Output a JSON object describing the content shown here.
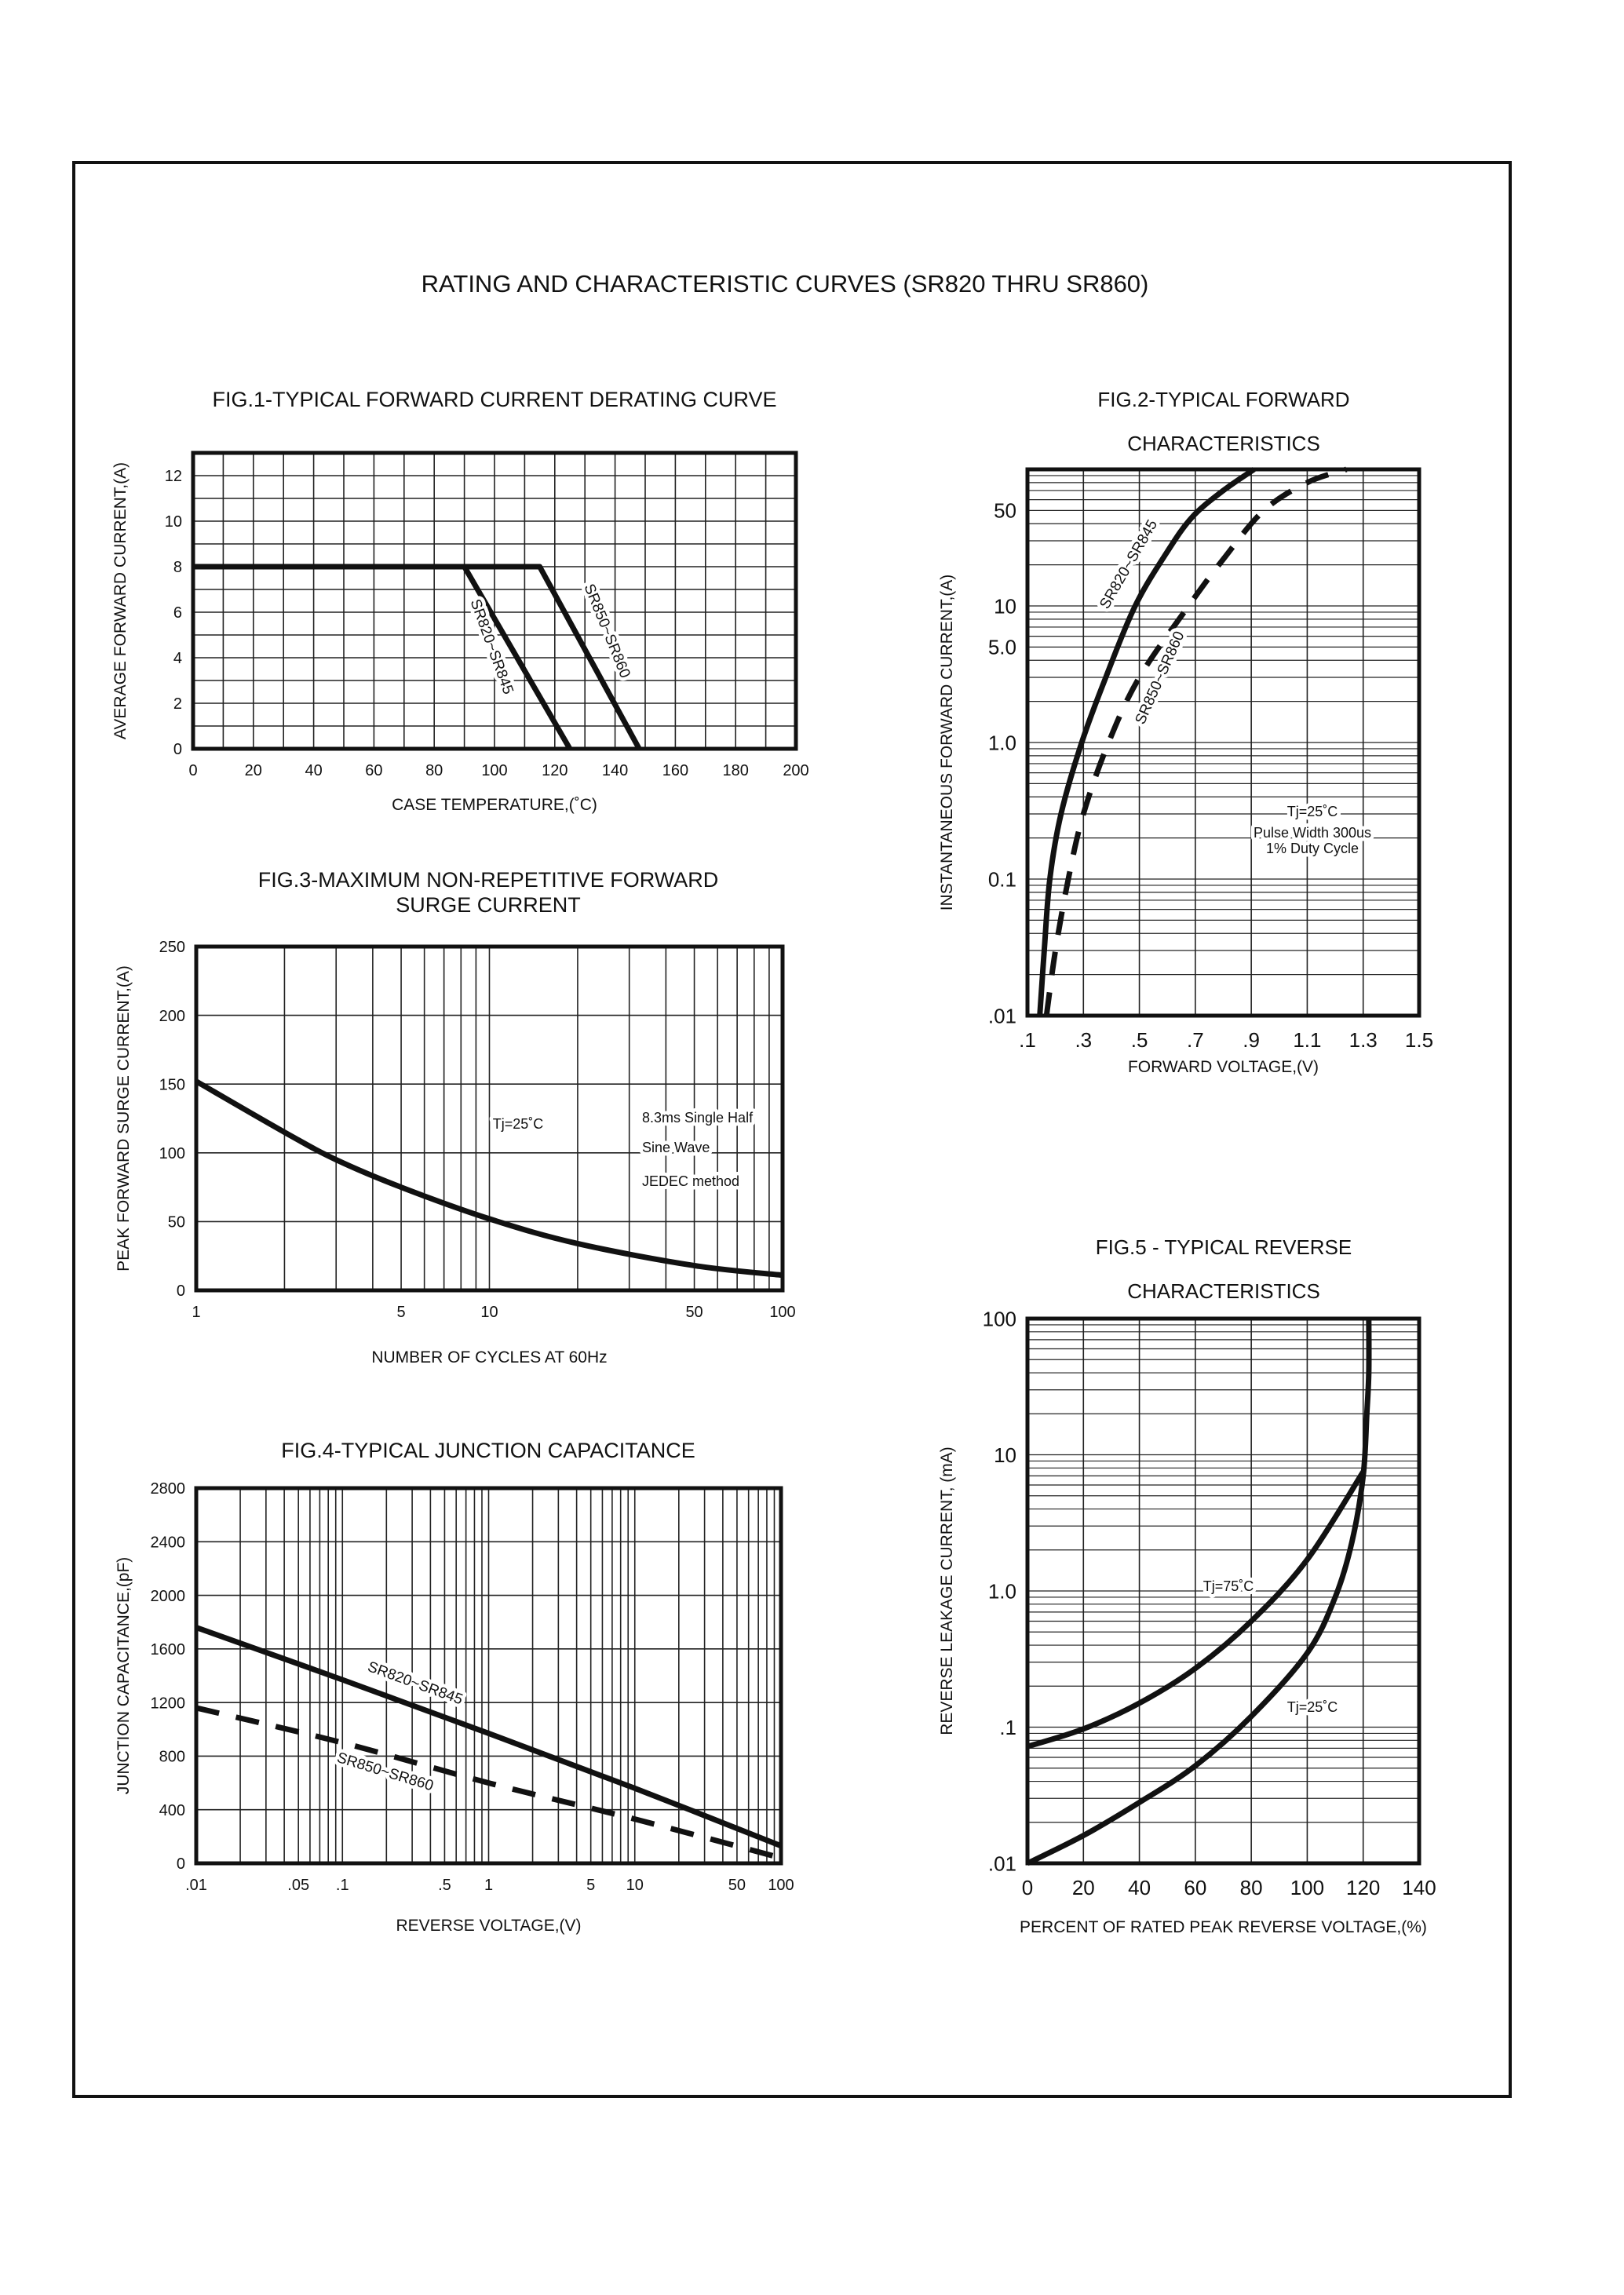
{
  "page_title": "RATING AND CHARACTERISTIC CURVES (SR820 THRU SR860)",
  "colors": {
    "ink": "#111111",
    "grid": "#222222",
    "paper": "#ffffff"
  },
  "chart_data": [
    {
      "id": "fig1",
      "type": "line",
      "title": [
        "FIG.1-TYPICAL FORWARD CURRENT DERATING CURVE"
      ],
      "xlabel": "CASE  TEMPERATURE,(˚C)",
      "ylabel": "AVERAGE FORWARD CURRENT,(A)",
      "xscale": "linear",
      "yscale": "linear",
      "xlim": [
        0,
        200
      ],
      "ylim": [
        0,
        13
      ],
      "grid": true,
      "xgrid_step": 10,
      "ygrid_step": 1,
      "xticks": [
        {
          "v": 0,
          "l": "0"
        },
        {
          "v": 20,
          "l": "20"
        },
        {
          "v": 40,
          "l": "40"
        },
        {
          "v": 60,
          "l": "60"
        },
        {
          "v": 80,
          "l": "80"
        },
        {
          "v": 100,
          "l": "100"
        },
        {
          "v": 120,
          "l": "120"
        },
        {
          "v": 140,
          "l": "140"
        },
        {
          "v": 160,
          "l": "160"
        },
        {
          "v": 180,
          "l": "180"
        },
        {
          "v": 200,
          "l": "200"
        }
      ],
      "yticks": [
        {
          "v": 0,
          "l": "0"
        },
        {
          "v": 2,
          "l": "2"
        },
        {
          "v": 4,
          "l": "4"
        },
        {
          "v": 6,
          "l": "6"
        },
        {
          "v": 8,
          "l": "8"
        },
        {
          "v": 10,
          "l": "10"
        },
        {
          "v": 12,
          "l": "12"
        }
      ],
      "series": [
        {
          "name": "SR820~SR845",
          "style": "solid",
          "smooth": false,
          "x": [
            0,
            90,
            125
          ],
          "y": [
            8,
            8,
            0
          ]
        },
        {
          "name": "SR850~SR860",
          "style": "solid",
          "smooth": false,
          "x": [
            0,
            115,
            148
          ],
          "y": [
            8,
            8,
            0
          ]
        }
      ],
      "annotations": []
    },
    {
      "id": "fig2",
      "type": "line",
      "title": [
        "FIG.2-TYPICAL FORWARD",
        "CHARACTERISTICS"
      ],
      "xlabel": "FORWARD VOLTAGE,(V)",
      "ylabel": "INSTANTANEOUS FORWARD CURRENT,(A)",
      "xscale": "linear",
      "yscale": "log",
      "xlim": [
        0.1,
        1.5
      ],
      "ylim": [
        0.01,
        100
      ],
      "grid": true,
      "xgrid_step": 0.2,
      "xticks": [
        {
          "v": 0.1,
          "l": ".1"
        },
        {
          "v": 0.3,
          "l": ".3"
        },
        {
          "v": 0.5,
          "l": ".5"
        },
        {
          "v": 0.7,
          "l": ".7"
        },
        {
          "v": 0.9,
          "l": ".9"
        },
        {
          "v": 1.1,
          "l": "1.1"
        },
        {
          "v": 1.3,
          "l": "1.3"
        },
        {
          "v": 1.5,
          "l": "1.5"
        }
      ],
      "yticks": [
        {
          "v": 0.01,
          "l": ".01"
        },
        {
          "v": 0.1,
          "l": "0.1"
        },
        {
          "v": 1,
          "l": "1.0"
        },
        {
          "v": 5,
          "l": "5.0"
        },
        {
          "v": 10,
          "l": "10"
        },
        {
          "v": 50,
          "l": "50"
        }
      ],
      "series": [
        {
          "name": "SR820~SR845",
          "style": "solid",
          "smooth": true,
          "x": [
            0.144,
            0.16,
            0.18,
            0.22,
            0.294,
            0.38,
            0.485,
            0.6,
            0.69,
            0.8,
            0.91
          ],
          "y": [
            0.01,
            0.03,
            0.1,
            0.3,
            1.0,
            3.0,
            10,
            25,
            45,
            70,
            100
          ]
        },
        {
          "name": "SR850~SR860",
          "style": "dashed",
          "smooth": true,
          "x": [
            0.168,
            0.2,
            0.246,
            0.3,
            0.39,
            0.5,
            0.676,
            0.8,
            0.945,
            1.1,
            1.24
          ],
          "y": [
            0.01,
            0.03,
            0.1,
            0.3,
            1.0,
            3.0,
            10,
            22,
            50,
            80,
            100
          ]
        }
      ],
      "annotations": [
        "Tj=25˚C",
        "Pulse Width 300us",
        "1% Duty Cycle"
      ]
    },
    {
      "id": "fig3",
      "type": "line",
      "title": [
        "FIG.3-MAXIMUM NON-REPETITIVE FORWARD",
        "SURGE CURRENT"
      ],
      "xlabel": "NUMBER OF CYCLES AT 60Hz",
      "ylabel": "PEAK FORWARD SURGE CURRENT,(A)",
      "xscale": "log",
      "yscale": "linear",
      "xlim": [
        1,
        100
      ],
      "ylim": [
        0,
        250
      ],
      "grid": true,
      "ygrid_step": 50,
      "xticks": [
        {
          "v": 1,
          "l": "1"
        },
        {
          "v": 5,
          "l": "5"
        },
        {
          "v": 10,
          "l": "10"
        },
        {
          "v": 50,
          "l": "50"
        },
        {
          "v": 100,
          "l": "100"
        }
      ],
      "yticks": [
        {
          "v": 0,
          "l": "0"
        },
        {
          "v": 50,
          "l": "50"
        },
        {
          "v": 100,
          "l": "100"
        },
        {
          "v": 150,
          "l": "150"
        },
        {
          "v": 200,
          "l": "200"
        },
        {
          "v": 250,
          "l": "250"
        }
      ],
      "series": [
        {
          "style": "solid",
          "smooth": true,
          "x": [
            1,
            2,
            3,
            5,
            10,
            20,
            50,
            100
          ],
          "y": [
            152,
            115,
            95,
            75,
            52,
            34,
            18,
            11
          ]
        }
      ],
      "annotations": [
        "Tj=25˚C",
        "8.3ms Single Half",
        "Sine Wave",
        "JEDEC method"
      ]
    },
    {
      "id": "fig4",
      "type": "line",
      "title": [
        "FIG.4-TYPICAL JUNCTION CAPACITANCE"
      ],
      "xlabel": "REVERSE VOLTAGE,(V)",
      "ylabel": "JUNCTION CAPACITANCE,(pF)",
      "xscale": "log",
      "yscale": "linear",
      "xlim": [
        0.01,
        100
      ],
      "ylim": [
        0,
        2800
      ],
      "grid": true,
      "ygrid_step": 400,
      "xticks": [
        {
          "v": 0.01,
          "l": ".01"
        },
        {
          "v": 0.05,
          "l": ".05"
        },
        {
          "v": 0.1,
          "l": ".1"
        },
        {
          "v": 0.5,
          "l": ".5"
        },
        {
          "v": 1,
          "l": "1"
        },
        {
          "v": 5,
          "l": "5"
        },
        {
          "v": 10,
          "l": "10"
        },
        {
          "v": 50,
          "l": "50"
        },
        {
          "v": 100,
          "l": "100"
        }
      ],
      "yticks": [
        {
          "v": 0,
          "l": "0"
        },
        {
          "v": 400,
          "l": "400"
        },
        {
          "v": 800,
          "l": "800"
        },
        {
          "v": 1200,
          "l": "1200"
        },
        {
          "v": 1600,
          "l": "1600"
        },
        {
          "v": 2000,
          "l": "2000"
        },
        {
          "v": 2400,
          "l": "2400"
        },
        {
          "v": 2800,
          "l": "2800"
        }
      ],
      "series": [
        {
          "name": "SR820~SR845",
          "style": "solid",
          "smooth": true,
          "x": [
            0.01,
            0.1,
            1,
            10,
            100
          ],
          "y": [
            1760,
            1370,
            970,
            560,
            130
          ]
        },
        {
          "name": "SR850~SR860",
          "style": "dashed",
          "smooth": true,
          "x": [
            0.01,
            0.1,
            1,
            10,
            100
          ],
          "y": [
            1160,
            900,
            600,
            330,
            40
          ]
        }
      ],
      "annotations": []
    },
    {
      "id": "fig5",
      "type": "line",
      "title": [
        "FIG.5 - TYPICAL REVERSE",
        "CHARACTERISTICS"
      ],
      "xlabel": "PERCENT OF RATED PEAK REVERSE VOLTAGE,(%)",
      "ylabel": "REVERSE LEAKAGE CURRENT, (mA)",
      "xscale": "linear",
      "yscale": "log",
      "xlim": [
        0,
        140
      ],
      "ylim": [
        0.01,
        100
      ],
      "grid": true,
      "xgrid_step": 20,
      "xticks": [
        {
          "v": 0,
          "l": "0"
        },
        {
          "v": 20,
          "l": "20"
        },
        {
          "v": 40,
          "l": "40"
        },
        {
          "v": 60,
          "l": "60"
        },
        {
          "v": 80,
          "l": "80"
        },
        {
          "v": 100,
          "l": "100"
        },
        {
          "v": 120,
          "l": "120"
        },
        {
          "v": 140,
          "l": "140"
        }
      ],
      "yticks": [
        {
          "v": 0.01,
          "l": ".01"
        },
        {
          "v": 0.1,
          "l": ".1"
        },
        {
          "v": 1,
          "l": "1.0"
        },
        {
          "v": 10,
          "l": "10"
        },
        {
          "v": 100,
          "l": "100"
        }
      ],
      "series": [
        {
          "name": "Tj=75˚C",
          "style": "solid",
          "smooth": true,
          "x": [
            0,
            20,
            40,
            60,
            80,
            100,
            120
          ],
          "y": [
            0.072,
            0.097,
            0.15,
            0.27,
            0.6,
            1.7,
            7.5
          ]
        },
        {
          "name": "Tj=25˚C",
          "style": "solid",
          "smooth": true,
          "x": [
            0,
            20,
            40,
            60,
            80,
            100,
            110,
            116,
            120,
            121.3,
            122,
            122
          ],
          "y": [
            0.01,
            0.016,
            0.028,
            0.052,
            0.12,
            0.35,
            0.9,
            2.3,
            7,
            20,
            40,
            100
          ]
        }
      ],
      "annotations": []
    }
  ]
}
